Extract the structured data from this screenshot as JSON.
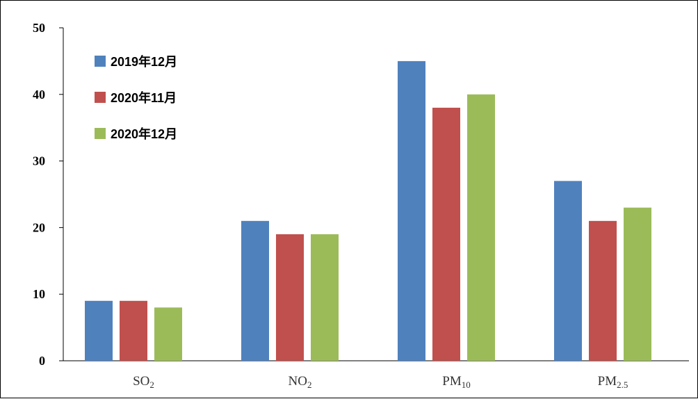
{
  "chart_data": {
    "type": "bar",
    "categories": [
      {
        "main": "SO",
        "sub": "2"
      },
      {
        "main": "NO",
        "sub": "2"
      },
      {
        "main": "PM",
        "sub": "10"
      },
      {
        "main": "PM",
        "sub": "2.5"
      }
    ],
    "series": [
      {
        "name": "2019年12月",
        "color": "#4F81BD",
        "values": [
          9,
          21,
          45,
          27
        ]
      },
      {
        "name": "2020年11月",
        "color": "#C0504D",
        "values": [
          9,
          19,
          38,
          21
        ]
      },
      {
        "name": "2020年12月",
        "color": "#9BBB59",
        "values": [
          8,
          19,
          40,
          23
        ]
      }
    ],
    "yticks": [
      "0",
      "10",
      "20",
      "30",
      "40",
      "50"
    ],
    "ylim": [
      0,
      50
    ],
    "legend_position": "top-left",
    "grid": false
  }
}
